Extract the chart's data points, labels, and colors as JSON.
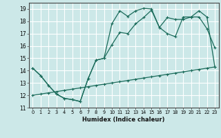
{
  "xlabel": "Humidex (Indice chaleur)",
  "xlim": [
    -0.5,
    23.5
  ],
  "ylim": [
    11,
    19.5
  ],
  "yticks": [
    11,
    12,
    13,
    14,
    15,
    16,
    17,
    18,
    19
  ],
  "xticks": [
    0,
    1,
    2,
    3,
    4,
    5,
    6,
    7,
    8,
    9,
    10,
    11,
    12,
    13,
    14,
    15,
    16,
    17,
    18,
    19,
    20,
    21,
    22,
    23
  ],
  "background_color": "#cce8e8",
  "grid_color": "#ffffff",
  "line_color": "#1a6b5a",
  "line1_x": [
    0,
    1,
    2,
    3,
    4,
    5,
    6,
    7,
    8,
    9,
    10,
    11,
    12,
    13,
    14,
    15,
    16,
    17,
    18,
    19,
    20,
    21,
    22,
    23
  ],
  "line1_y": [
    14.2,
    13.6,
    12.8,
    12.1,
    11.75,
    11.65,
    11.5,
    13.35,
    14.85,
    15.0,
    17.8,
    18.85,
    18.4,
    18.85,
    19.05,
    19.0,
    17.5,
    17.0,
    16.75,
    18.35,
    18.35,
    18.85,
    18.35,
    14.3
  ],
  "line2_x": [
    0,
    1,
    2,
    3,
    4,
    5,
    6,
    7,
    8,
    9,
    10,
    11,
    12,
    13,
    14,
    15,
    16,
    17,
    18,
    19,
    20,
    21,
    22,
    23
  ],
  "line2_y": [
    14.2,
    13.6,
    12.8,
    12.1,
    11.75,
    11.65,
    11.5,
    13.35,
    14.85,
    15.0,
    16.1,
    17.1,
    17.0,
    17.8,
    18.3,
    18.9,
    17.5,
    18.3,
    18.15,
    18.15,
    18.35,
    18.35,
    17.4,
    15.85
  ],
  "line3_x": [
    0,
    1,
    2,
    3,
    4,
    5,
    6,
    7,
    8,
    9,
    10,
    11,
    12,
    13,
    14,
    15,
    16,
    17,
    18,
    19,
    20,
    21,
    22,
    23
  ],
  "line3_y": [
    12.0,
    12.1,
    12.2,
    12.3,
    12.4,
    12.5,
    12.6,
    12.7,
    12.8,
    12.9,
    13.0,
    13.1,
    13.2,
    13.3,
    13.4,
    13.5,
    13.6,
    13.7,
    13.8,
    13.9,
    14.0,
    14.1,
    14.2,
    14.3
  ]
}
